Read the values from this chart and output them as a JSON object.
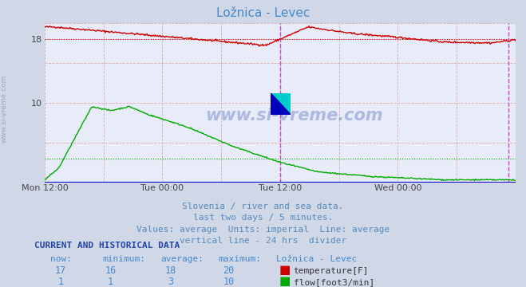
{
  "title": "Ložnica - Levec",
  "bg_color": "#d0d8e8",
  "plot_bg_color": "#e8ecf8",
  "x_ticks_labels": [
    "Mon 12:00",
    "Tue 00:00",
    "Tue 12:00",
    "Wed 00:00"
  ],
  "x_ticks_pos": [
    0.0,
    0.25,
    0.5,
    0.75
  ],
  "ylim": [
    0,
    20
  ],
  "xlim": [
    0,
    1
  ],
  "temp_avg": 18,
  "flow_avg": 3,
  "vline_pos": 0.5,
  "subtitle_lines": [
    "Slovenia / river and sea data.",
    "last two days / 5 minutes.",
    "Values: average  Units: imperial  Line: average",
    "vertical line - 24 hrs  divider"
  ],
  "subtitle_color": "#5588bb",
  "subtitle_fontsize": 8.5,
  "table_header_color": "#2244aa",
  "table_value_color": "#4488cc",
  "temp_color": "#cc0000",
  "flow_color": "#00aa00",
  "watermark_color": "#2244aa",
  "title_color": "#4488cc",
  "now_temp": 17,
  "min_temp": 16,
  "avg_temp": 18,
  "max_temp": 20,
  "now_flow": 1,
  "min_flow": 1,
  "avg_flow": 3,
  "max_flow": 10,
  "side_text_color": "#99aabb",
  "grid_color": "#ddaaaa",
  "border_color": "#aabbcc",
  "blue_baseline": "#0000cc",
  "vline_color": "#cc44cc"
}
